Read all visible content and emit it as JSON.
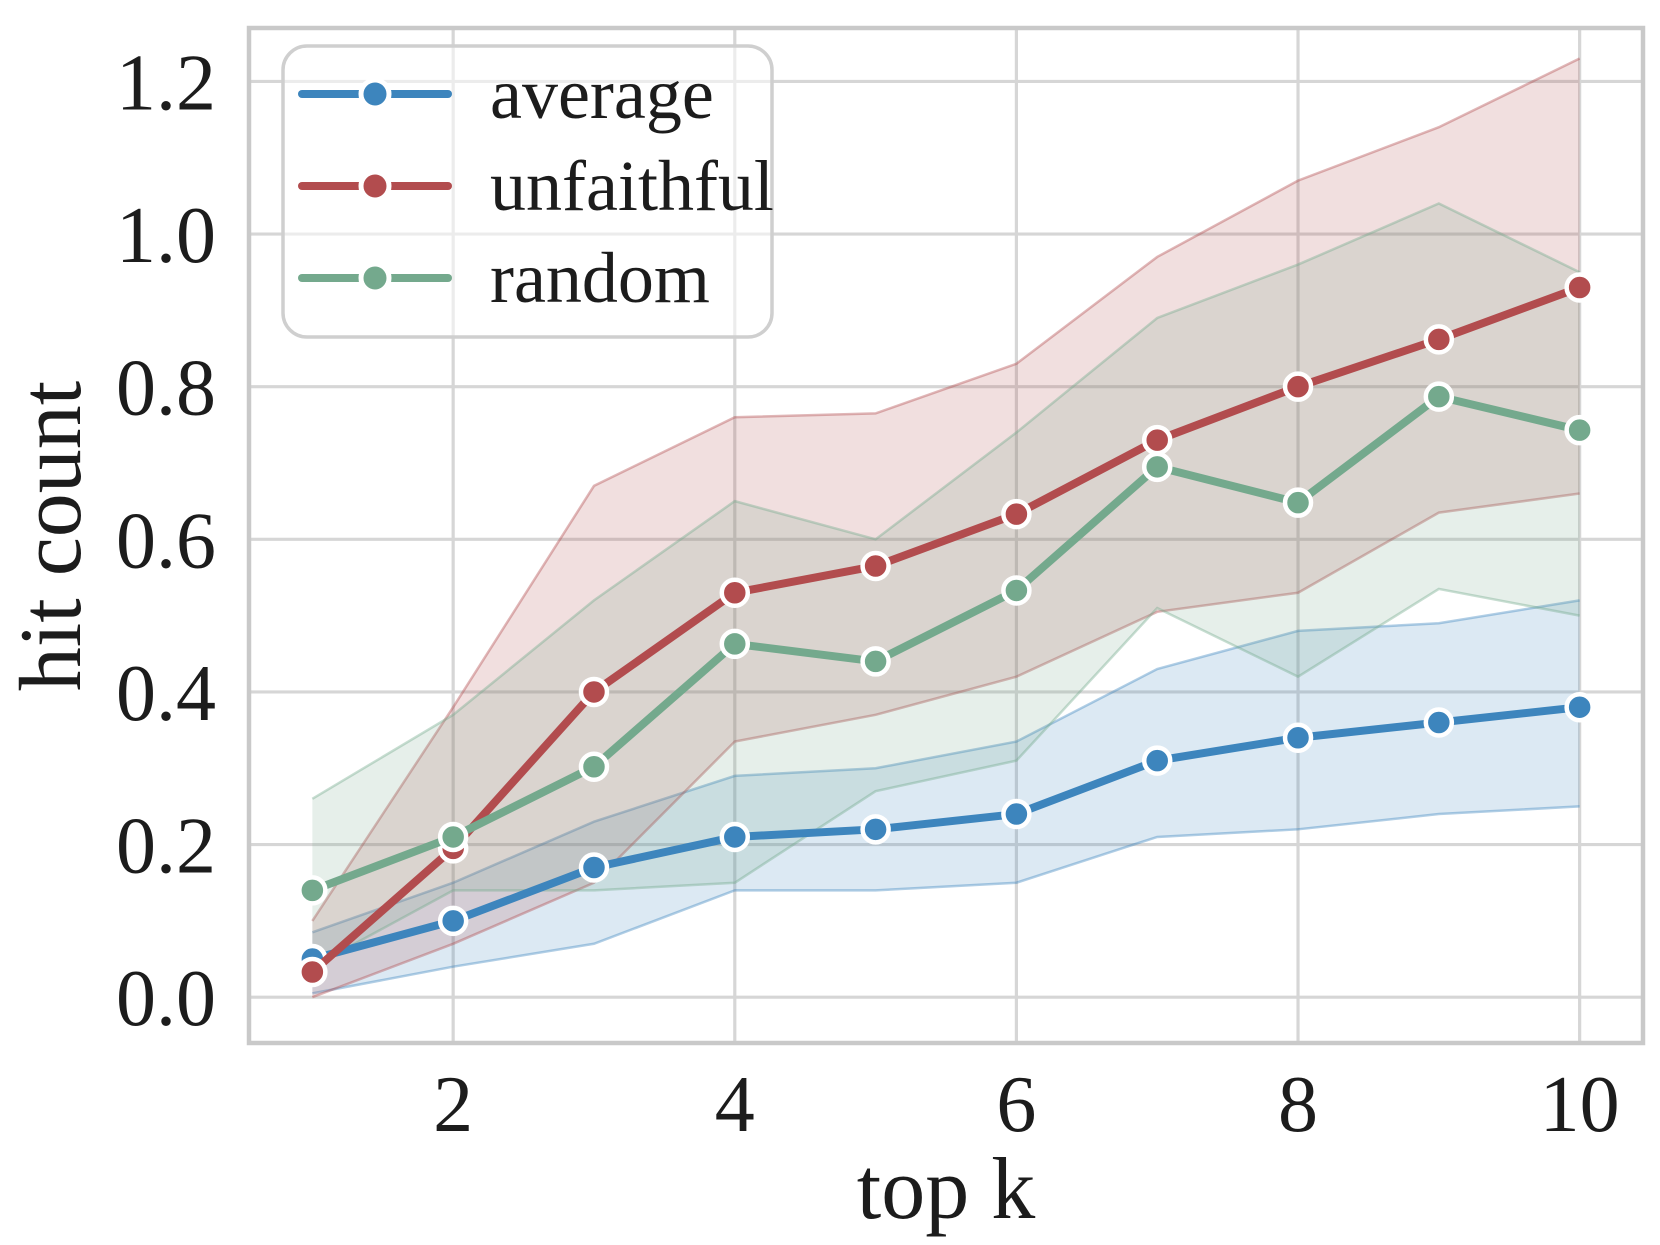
{
  "figure": {
    "xlabel": "top k",
    "ylabel": "hit count",
    "x_tick_labels": [
      "2",
      "4",
      "6",
      "8",
      "10"
    ],
    "y_tick_labels": [
      "0.0",
      "0.2",
      "0.4",
      "0.6",
      "0.8",
      "1.0",
      "1.2"
    ],
    "background_color": "#ffffff",
    "grid_color": "#d6d6d6",
    "spine_color": "#c9c9c9",
    "text_color": "#1c1c1c"
  },
  "legend": {
    "position": "upper left",
    "border_color": "#cfcfcf",
    "items": [
      {
        "label": "average",
        "color": "#3d85bd"
      },
      {
        "label": "unfaithful",
        "color": "#b24c4e"
      },
      {
        "label": "random",
        "color": "#74a98d"
      }
    ]
  },
  "chart_data": {
    "type": "line",
    "title": "",
    "xlabel": "top k",
    "ylabel": "hit count",
    "x": [
      1,
      2,
      3,
      4,
      5,
      6,
      7,
      8,
      9,
      10
    ],
    "x_ticks": [
      2,
      4,
      6,
      8,
      10
    ],
    "y_ticks": [
      0.0,
      0.2,
      0.4,
      0.6,
      0.8,
      1.0,
      1.2
    ],
    "xlim": [
      0.55,
      10.45
    ],
    "ylim": [
      -0.06,
      1.27
    ],
    "grid": true,
    "legend_position": "upper left",
    "series": [
      {
        "name": "average",
        "color": "#3d85bd",
        "values": [
          0.05,
          0.1,
          0.17,
          0.21,
          0.22,
          0.24,
          0.31,
          0.34,
          0.36,
          0.38
        ],
        "band_upper": [
          0.085,
          0.15,
          0.23,
          0.29,
          0.3,
          0.335,
          0.43,
          0.48,
          0.49,
          0.52
        ],
        "band_lower": [
          0.005,
          0.04,
          0.07,
          0.14,
          0.14,
          0.15,
          0.21,
          0.22,
          0.24,
          0.25
        ]
      },
      {
        "name": "unfaithful",
        "color": "#b24c4e",
        "values": [
          0.033,
          0.195,
          0.4,
          0.53,
          0.565,
          0.633,
          0.73,
          0.8,
          0.862,
          0.93
        ],
        "band_upper": [
          0.1,
          0.38,
          0.67,
          0.76,
          0.765,
          0.83,
          0.97,
          1.07,
          1.14,
          1.23
        ],
        "band_lower": [
          0.0,
          0.07,
          0.15,
          0.335,
          0.37,
          0.42,
          0.505,
          0.53,
          0.635,
          0.66
        ]
      },
      {
        "name": "random",
        "color": "#74a98d",
        "values": [
          0.14,
          0.21,
          0.302,
          0.463,
          0.44,
          0.533,
          0.695,
          0.648,
          0.787,
          0.743
        ],
        "band_upper": [
          0.26,
          0.37,
          0.52,
          0.65,
          0.6,
          0.74,
          0.89,
          0.96,
          1.04,
          0.95
        ],
        "band_lower": [
          0.04,
          0.14,
          0.14,
          0.15,
          0.27,
          0.31,
          0.51,
          0.42,
          0.535,
          0.5
        ]
      }
    ]
  }
}
